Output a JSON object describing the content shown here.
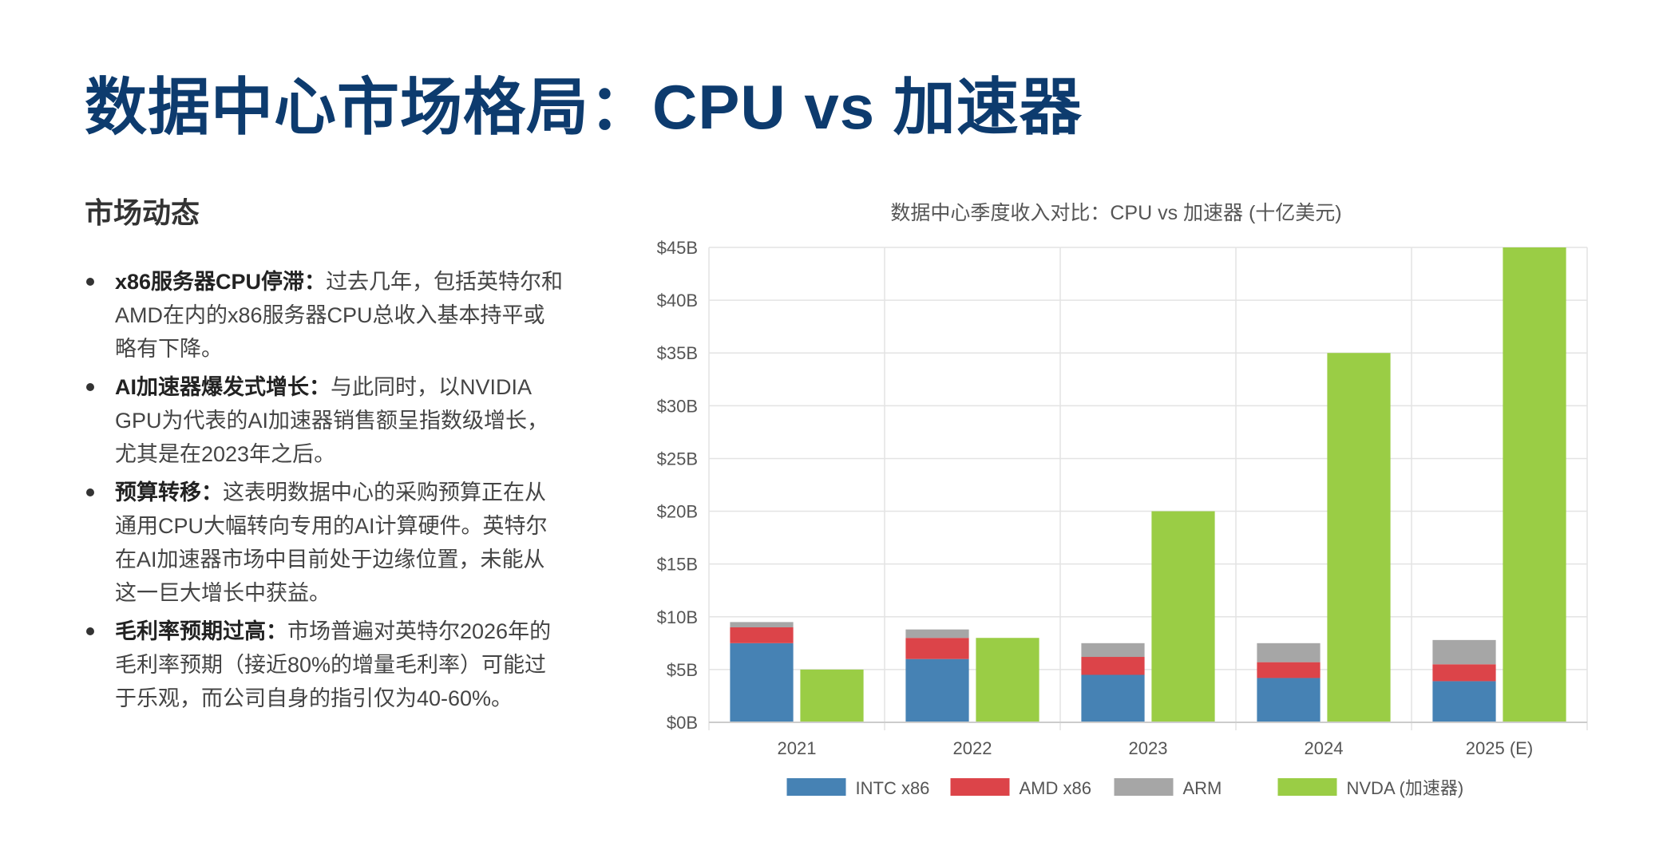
{
  "title": "数据中心市场格局：CPU vs 加速器",
  "dynamics": {
    "heading": "市场动态",
    "items": [
      {
        "label": "x86服务器CPU停滞：",
        "text": "过去几年，包括英特尔和AMD在内的x86服务器CPU总收入基本持平或略有下降。"
      },
      {
        "label": "AI加速器爆发式增长：",
        "text": "与此同时，以NVIDIA GPU为代表的AI加速器销售额呈指数级增长，尤其是在2023年之后。"
      },
      {
        "label": "预算转移：",
        "text": "这表明数据中心的采购预算正在从通用CPU大幅转向专用的AI计算硬件。英特尔在AI加速器市场中目前处于边缘位置，未能从这一巨大增长中获益。"
      },
      {
        "label": "毛利率预期过高：",
        "text": "市场普遍对英特尔2026年的毛利率预期（接近80%的增量毛利率）可能过于乐观，而公司自身的指引仅为40-60%。"
      }
    ]
  },
  "chart_data": {
    "type": "bar",
    "title": "数据中心季度收入对比：CPU vs 加速器 (十亿美元)",
    "categories": [
      "2021",
      "2022",
      "2023",
      "2024",
      "2025 (E)"
    ],
    "stacked_cpu_series": [
      {
        "name": "INTC x86",
        "color": "#4682b4",
        "values": [
          7.5,
          6.0,
          4.5,
          4.2,
          3.9
        ]
      },
      {
        "name": "AMD x86",
        "color": "#dc4449",
        "values": [
          1.5,
          2.0,
          1.7,
          1.5,
          1.6
        ]
      },
      {
        "name": "ARM",
        "color": "#a6a6a6",
        "values": [
          0.5,
          0.8,
          1.3,
          1.8,
          2.3
        ]
      }
    ],
    "accelerator_series": {
      "name": "NVDA (加速器)",
      "color": "#9acd45",
      "values": [
        5,
        8,
        20,
        35,
        45
      ]
    },
    "legend": [
      "INTC x86",
      "AMD x86",
      "ARM",
      "NVDA (加速器)"
    ],
    "ylim": [
      0,
      45
    ],
    "yticks": [
      "$0B",
      "$5B",
      "$10B",
      "$15B",
      "$20B",
      "$25B",
      "$30B",
      "$35B",
      "$40B",
      "$45B"
    ],
    "xlabel": "",
    "ylabel": "",
    "grid": true,
    "legend_position": "bottom"
  }
}
